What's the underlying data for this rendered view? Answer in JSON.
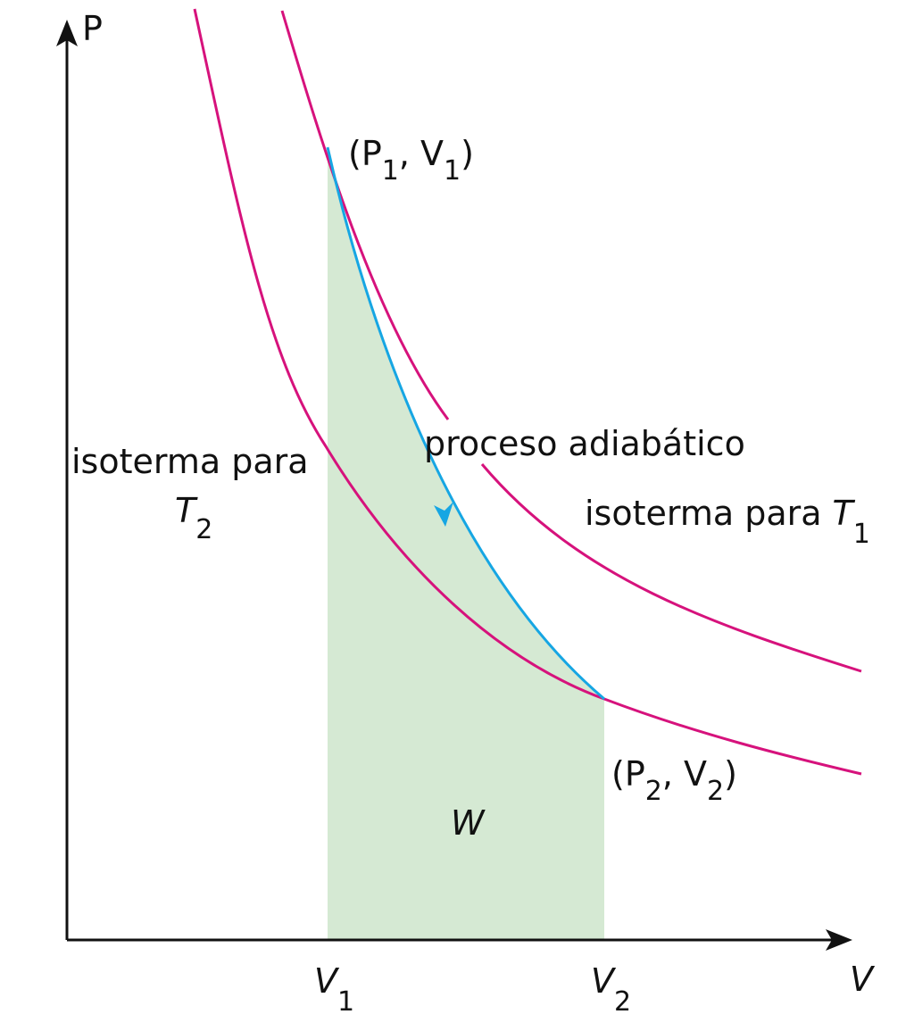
{
  "axes": {
    "y_label": "P",
    "x_label": "V"
  },
  "x_marks": [
    {
      "base": "V",
      "sub": "1"
    },
    {
      "base": "V",
      "sub": "2"
    }
  ],
  "points": [
    {
      "parts": [
        "(P",
        "1",
        ", V",
        "1",
        ")"
      ]
    },
    {
      "parts": [
        "(P",
        "2",
        ", V",
        "2",
        ")"
      ]
    }
  ],
  "labels": {
    "isotherm_t2": {
      "text": "isoterma para",
      "base": "T",
      "sub": "2"
    },
    "isotherm_t1": {
      "text": "isoterma para",
      "base": "T",
      "sub": "1"
    },
    "adiabatic": "proceso adiabático",
    "work": "W"
  }
}
